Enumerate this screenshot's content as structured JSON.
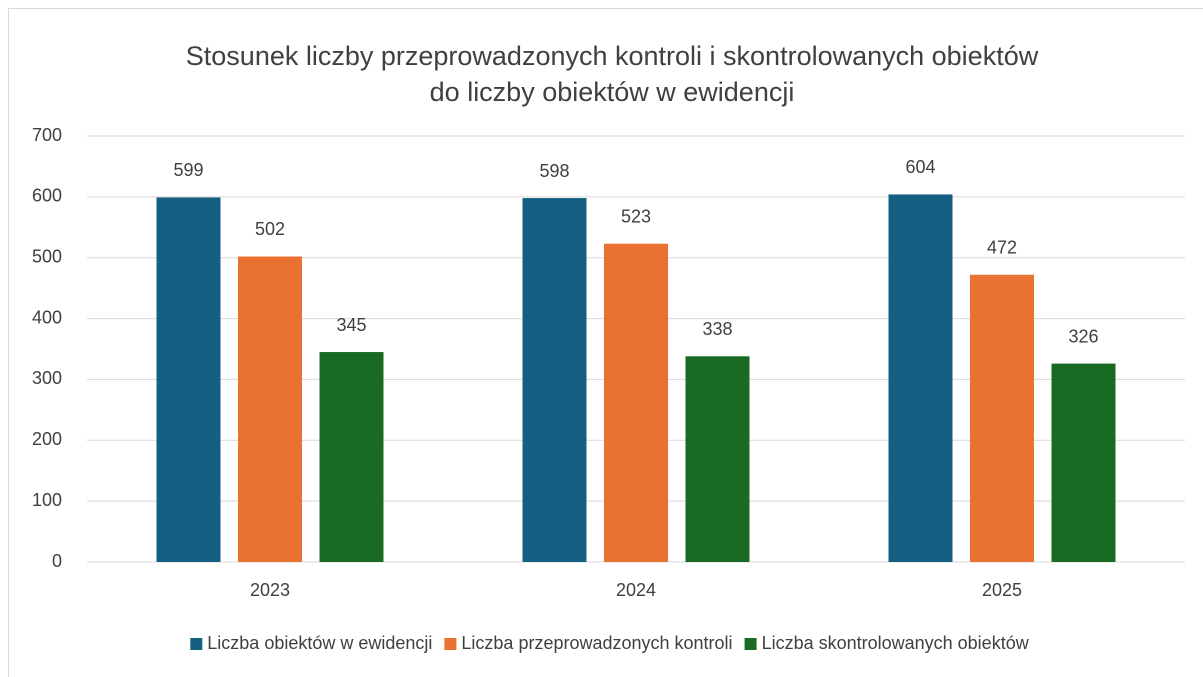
{
  "chart_data": {
    "type": "bar",
    "title": [
      "Stosunek liczby przeprowadzonych kontroli i skontrolowanych obiektów",
      "do liczby obiektów w ewidencji"
    ],
    "categories": [
      "2023",
      "2024",
      "2025"
    ],
    "series": [
      {
        "name": "Liczba obiektów w ewidencji",
        "color": "#156082",
        "values": [
          599,
          598,
          604
        ]
      },
      {
        "name": "Liczba przeprowadzonych kontroli",
        "color": "#e97132",
        "values": [
          502,
          523,
          472
        ]
      },
      {
        "name": "Liczba skontrolowanych obiektów",
        "color": "#196b24",
        "values": [
          345,
          338,
          326
        ]
      }
    ],
    "ylim": [
      0,
      700
    ],
    "yticks": [
      0,
      100,
      200,
      300,
      400,
      500,
      600,
      700
    ],
    "grid": true,
    "legend": "bottom"
  }
}
